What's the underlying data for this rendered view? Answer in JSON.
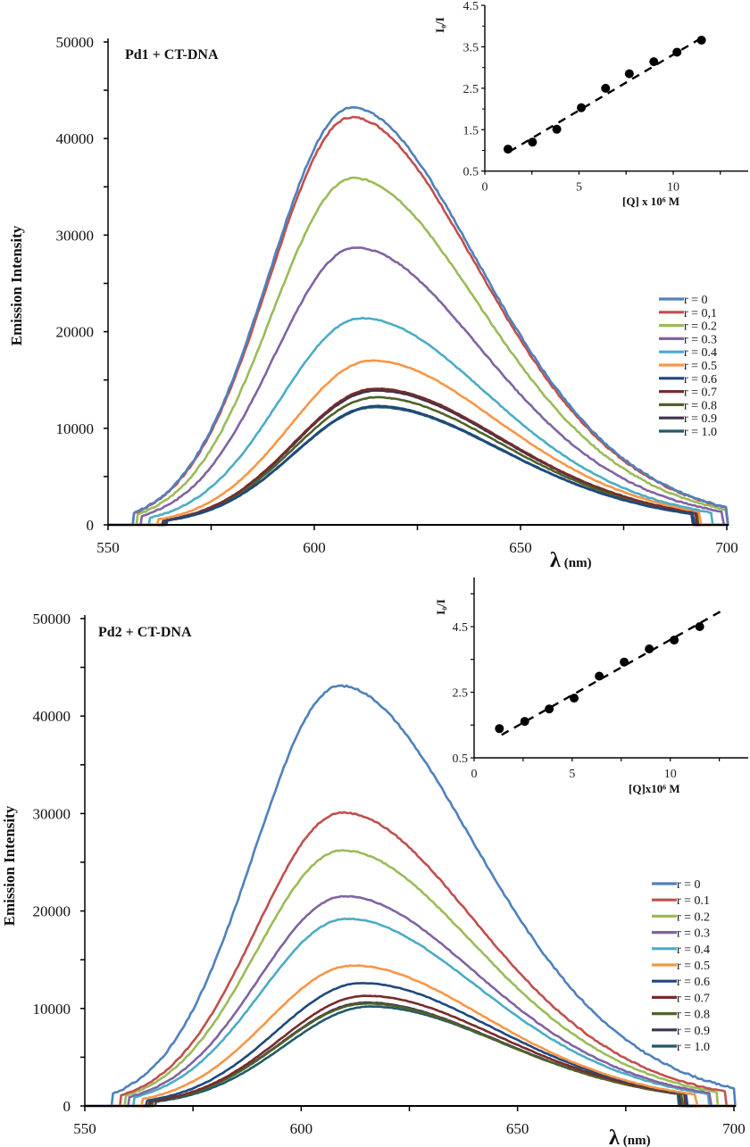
{
  "chart_data": [
    {
      "type": "line",
      "title": "Pd1 + CT-DNA",
      "xlabel": "λ (nm)",
      "ylabel": "Emission Intensity",
      "xlim": [
        550,
        700
      ],
      "ylim": [
        0,
        50000
      ],
      "xticks": [
        550,
        600,
        650,
        700
      ],
      "yticks": [
        0,
        10000,
        20000,
        30000,
        40000,
        50000
      ],
      "grid": false,
      "legend_position": "right",
      "series": [
        {
          "name": "r = 0",
          "color": "#4F81BD",
          "peak_nm": 609,
          "peak_intensity": 43200,
          "onset_nm": 556.3,
          "end_nm": 700
        },
        {
          "name": "r = 0,1",
          "color": "#C0504D",
          "peak_nm": 609,
          "peak_intensity": 42200,
          "onset_nm": 556.3,
          "end_nm": 700
        },
        {
          "name": "r = 0.2",
          "color": "#9BBB59",
          "peak_nm": 609.5,
          "peak_intensity": 35900,
          "onset_nm": 557.2,
          "end_nm": 700
        },
        {
          "name": "r = 0.3",
          "color": "#8064A2",
          "peak_nm": 610,
          "peak_intensity": 28700,
          "onset_nm": 558.2,
          "end_nm": 699
        },
        {
          "name": "r = 0.4",
          "color": "#4BACC6",
          "peak_nm": 611.5,
          "peak_intensity": 21400,
          "onset_nm": 560.2,
          "end_nm": 696.3
        },
        {
          "name": "r = 0.5",
          "color": "#F79646",
          "peak_nm": 614,
          "peak_intensity": 17000,
          "onset_nm": 562.2,
          "end_nm": 693.5
        },
        {
          "name": "r = 0.6",
          "color": "#1F497D",
          "peak_nm": 615,
          "peak_intensity": 12300,
          "onset_nm": 564.2,
          "end_nm": 692
        },
        {
          "name": "r = 0.7",
          "color": "#772C2A",
          "peak_nm": 615,
          "peak_intensity": 14100,
          "onset_nm": 563.4,
          "end_nm": 692.5
        },
        {
          "name": "r = 0.8",
          "color": "#4F6228",
          "peak_nm": 615,
          "peak_intensity": 13200,
          "onset_nm": 563.8,
          "end_nm": 692.8
        },
        {
          "name": "r = 0.9",
          "color": "#403152",
          "peak_nm": 615,
          "peak_intensity": 13900,
          "onset_nm": 563.6,
          "end_nm": 691.8
        },
        {
          "name": "r = 1.0",
          "color": "#215968",
          "peak_nm": 615,
          "peak_intensity": 12200,
          "onset_nm": 564.4,
          "end_nm": 691.5
        }
      ],
      "inset": {
        "type": "scatter",
        "xlabel": "[Q] x 10⁶ M",
        "ylabel": "I₀/I",
        "xlim": [
          0,
          14
        ],
        "ylim": [
          0.5,
          4.5
        ],
        "xticks": [
          0,
          5,
          10
        ],
        "yticks": [
          0.5,
          1.5,
          2.5,
          3.5,
          4.5
        ],
        "points": [
          {
            "x": 1.23,
            "y": 1.03
          },
          {
            "x": 2.53,
            "y": 1.2
          },
          {
            "x": 3.82,
            "y": 1.51
          },
          {
            "x": 5.12,
            "y": 2.03
          },
          {
            "x": 6.41,
            "y": 2.5
          },
          {
            "x": 7.67,
            "y": 2.85
          },
          {
            "x": 8.97,
            "y": 3.14
          },
          {
            "x": 10.2,
            "y": 3.37
          },
          {
            "x": 11.5,
            "y": 3.66
          }
        ],
        "fit_line": {
          "x0": 1.3,
          "y0": 0.97,
          "x1": 11.6,
          "y1": 3.74,
          "style": "dashed"
        }
      }
    },
    {
      "type": "line",
      "title": "Pd2 + CT-DNA",
      "xlabel": "λ (nm)",
      "ylabel": "Emission Intensity",
      "xlim": [
        550,
        700
      ],
      "ylim": [
        0,
        50000
      ],
      "xticks": [
        550,
        600,
        650,
        700
      ],
      "yticks": [
        0,
        10000,
        20000,
        30000,
        40000,
        50000
      ],
      "grid": false,
      "legend_position": "right",
      "series": [
        {
          "name": "r = 0",
          "color": "#4F81BD",
          "peak_nm": 609,
          "peak_intensity": 43100,
          "onset_nm": 556.5,
          "end_nm": 700
        },
        {
          "name": "r = 0.1",
          "color": "#C0504D",
          "peak_nm": 609.5,
          "peak_intensity": 30100,
          "onset_nm": 558.4,
          "end_nm": 698
        },
        {
          "name": "r = 0.2",
          "color": "#9BBB59",
          "peak_nm": 609.5,
          "peak_intensity": 26200,
          "onset_nm": 559.5,
          "end_nm": 696
        },
        {
          "name": "r = 0.3",
          "color": "#8064A2",
          "peak_nm": 610,
          "peak_intensity": 21500,
          "onset_nm": 560.3,
          "end_nm": 694.5
        },
        {
          "name": "r = 0.4",
          "color": "#4BACC6",
          "peak_nm": 610.5,
          "peak_intensity": 19200,
          "onset_nm": 561.5,
          "end_nm": 694
        },
        {
          "name": "r = 0.5",
          "color": "#F79646",
          "peak_nm": 612,
          "peak_intensity": 14400,
          "onset_nm": 563.4,
          "end_nm": 691.3
        },
        {
          "name": "r = 0.6",
          "color": "#1F497D",
          "peak_nm": 614,
          "peak_intensity": 12600,
          "onset_nm": 564.4,
          "end_nm": 689
        },
        {
          "name": "r = 0.7",
          "color": "#772C2A",
          "peak_nm": 615,
          "peak_intensity": 11300,
          "onset_nm": 565.0,
          "end_nm": 688.5
        },
        {
          "name": "r = 0.8",
          "color": "#4F6228",
          "peak_nm": 615,
          "peak_intensity": 10500,
          "onset_nm": 565.8,
          "end_nm": 688
        },
        {
          "name": "r = 0.9",
          "color": "#403152",
          "peak_nm": 615,
          "peak_intensity": 10600,
          "onset_nm": 565.5,
          "end_nm": 687.5
        },
        {
          "name": "r = 1.0",
          "color": "#215968",
          "peak_nm": 616,
          "peak_intensity": 10200,
          "onset_nm": 566.5,
          "end_nm": 687
        }
      ],
      "inset": {
        "type": "scatter",
        "xlabel": "[Q]x10⁶ M",
        "ylabel": "I₀/I",
        "xlim": [
          0,
          14
        ],
        "ylim": [
          0.5,
          6.0
        ],
        "xticks": [
          0,
          5,
          10
        ],
        "yticks": [
          0.5,
          2.5,
          4.5
        ],
        "minor_yticks": [
          1.5,
          3.5,
          5.5
        ],
        "points": [
          {
            "x": 1.29,
            "y": 1.39
          },
          {
            "x": 2.58,
            "y": 1.61
          },
          {
            "x": 3.83,
            "y": 1.99
          },
          {
            "x": 5.1,
            "y": 2.32
          },
          {
            "x": 6.38,
            "y": 2.99
          },
          {
            "x": 7.65,
            "y": 3.42
          },
          {
            "x": 8.93,
            "y": 3.82
          },
          {
            "x": 10.2,
            "y": 4.09
          },
          {
            "x": 11.5,
            "y": 4.5
          }
        ],
        "fit_line": {
          "x0": 1.4,
          "y0": 1.2,
          "x1": 12.8,
          "y1": 5.04,
          "style": "dashed"
        }
      }
    }
  ]
}
